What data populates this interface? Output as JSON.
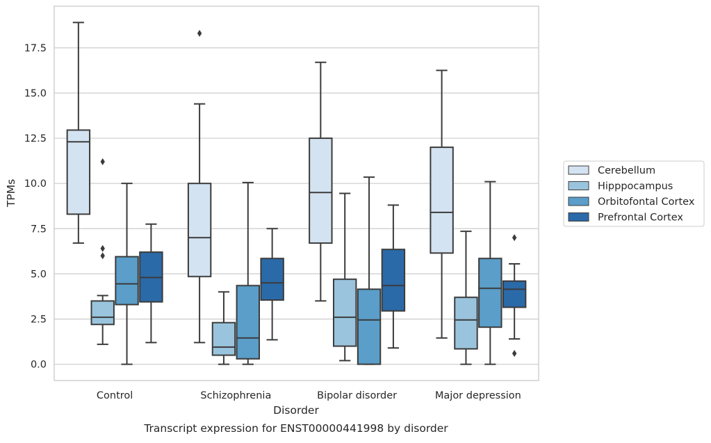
{
  "chart_data": {
    "type": "box",
    "xlabel": "Disorder",
    "ylabel": "TPMs",
    "caption": "Transcript expression for ENST00000441998 by disorder",
    "ylim": [
      -0.9,
      19.8
    ],
    "yticks": [
      "0.0",
      "2.5",
      "5.0",
      "7.5",
      "10.0",
      "12.5",
      "15.0",
      "17.5"
    ],
    "grid": "horizontal",
    "legend_position": "right",
    "categories": [
      "Control",
      "Schizophrenia",
      "Bipolar disorder",
      "Major depression"
    ],
    "series": [
      {
        "name": "Cerebellum",
        "color": "#d4e3f1",
        "boxes": [
          {
            "whisker_low": 6.7,
            "q1": 8.3,
            "median": 12.3,
            "q3": 12.95,
            "whisker_high": 18.9,
            "outliers": []
          },
          {
            "whisker_low": 1.2,
            "q1": 4.85,
            "median": 7.0,
            "q3": 10.0,
            "whisker_high": 14.4,
            "outliers": [
              18.3
            ]
          },
          {
            "whisker_low": 3.5,
            "q1": 6.7,
            "median": 9.5,
            "q3": 12.5,
            "whisker_high": 16.7,
            "outliers": []
          },
          {
            "whisker_low": 1.45,
            "q1": 6.15,
            "median": 8.4,
            "q3": 12.0,
            "whisker_high": 16.25,
            "outliers": []
          }
        ]
      },
      {
        "name": "Hipppocampus",
        "color": "#9ac4dd",
        "boxes": [
          {
            "whisker_low": 1.1,
            "q1": 2.2,
            "median": 2.6,
            "q3": 3.5,
            "whisker_high": 3.8,
            "outliers": [
              11.2,
              6.4,
              6.0
            ]
          },
          {
            "whisker_low": 0.0,
            "q1": 0.5,
            "median": 0.95,
            "q3": 2.3,
            "whisker_high": 4.0,
            "outliers": []
          },
          {
            "whisker_low": 0.2,
            "q1": 1.0,
            "median": 2.6,
            "q3": 4.7,
            "whisker_high": 9.45,
            "outliers": []
          },
          {
            "whisker_low": 0.0,
            "q1": 0.85,
            "median": 2.45,
            "q3": 3.7,
            "whisker_high": 7.35,
            "outliers": []
          }
        ]
      },
      {
        "name": "Orbitofontal Cortex",
        "color": "#5a9ec9",
        "boxes": [
          {
            "whisker_low": 0.0,
            "q1": 3.3,
            "median": 4.45,
            "q3": 5.95,
            "whisker_high": 10.0,
            "outliers": []
          },
          {
            "whisker_low": 0.0,
            "q1": 0.3,
            "median": 1.45,
            "q3": 4.35,
            "whisker_high": 10.05,
            "outliers": []
          },
          {
            "whisker_low": 0.0,
            "q1": 0.0,
            "median": 2.45,
            "q3": 4.15,
            "whisker_high": 10.35,
            "outliers": []
          },
          {
            "whisker_low": 0.0,
            "q1": 2.05,
            "median": 4.2,
            "q3": 5.85,
            "whisker_high": 10.1,
            "outliers": []
          }
        ]
      },
      {
        "name": "Prefrontal Cortex",
        "color": "#2b6aa8",
        "boxes": [
          {
            "whisker_low": 1.2,
            "q1": 3.45,
            "median": 4.8,
            "q3": 6.2,
            "whisker_high": 7.75,
            "outliers": []
          },
          {
            "whisker_low": 1.35,
            "q1": 3.55,
            "median": 4.5,
            "q3": 5.85,
            "whisker_high": 7.5,
            "outliers": []
          },
          {
            "whisker_low": 0.9,
            "q1": 2.95,
            "median": 4.35,
            "q3": 6.35,
            "whisker_high": 8.8,
            "outliers": []
          },
          {
            "whisker_low": 1.4,
            "q1": 3.15,
            "median": 4.15,
            "q3": 4.6,
            "whisker_high": 5.55,
            "outliers": [
              7.0,
              0.6
            ]
          }
        ]
      }
    ]
  }
}
